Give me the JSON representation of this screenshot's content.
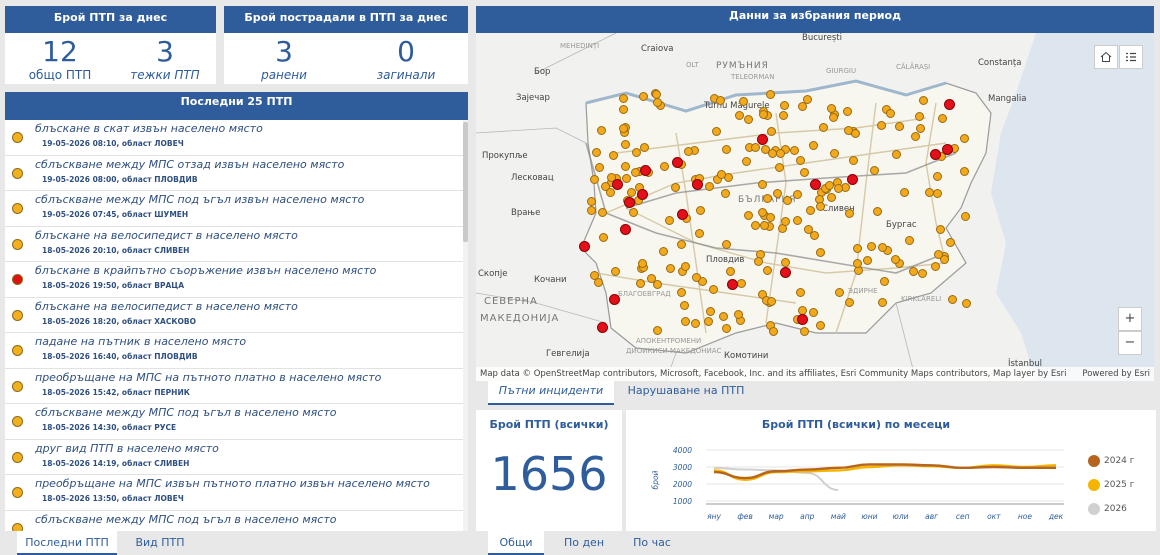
{
  "kpi_today": {
    "header": "Брой ПТП за днес",
    "total_value": "12",
    "total_label": "общо ПТП",
    "severe_value": "3",
    "severe_label": "тежки ПТП"
  },
  "kpi_victims": {
    "header": "Брой пострадали в ПТП за днес",
    "injured_value": "3",
    "injured_label": "ранени",
    "dead_value": "0",
    "dead_label": "загинали"
  },
  "list": {
    "header": "Последни 25 ПТП",
    "items": [
      {
        "title": "блъскане в скат  извън населено място",
        "sub": "19-05-2026 08:10, област ЛОВЕЧ",
        "color": "#f2b01e"
      },
      {
        "title": "сблъскване между МПС отзад  извън населено място",
        "sub": "19-05-2026 08:00, област ПЛОВДИВ",
        "color": "#f2b01e"
      },
      {
        "title": "сблъскване между МПС под ъгъл  извън населено място",
        "sub": "19-05-2026 07:45, област ШУМЕН",
        "color": "#f2b01e"
      },
      {
        "title": "блъскане на велосипедист  в населено място",
        "sub": "18-05-2026 20:10, област СЛИВЕН",
        "color": "#f2b01e"
      },
      {
        "title": "блъскане в крайпътно съоръжение  извън населено място",
        "sub": "18-05-2026 19:50, област ВРАЦА",
        "color": "#e01010"
      },
      {
        "title": "блъскане на велосипедист  в населено място",
        "sub": "18-05-2026 18:20, област ХАСКОВО",
        "color": "#f2b01e"
      },
      {
        "title": "падане на пътник  в населено място",
        "sub": "18-05-2026 16:40, област ПЛОВДИВ",
        "color": "#f2b01e"
      },
      {
        "title": "преобръщане на МПС на пътното платно  в населено място",
        "sub": "18-05-2026 15:42, област ПЕРНИК",
        "color": "#f2b01e"
      },
      {
        "title": "сблъскване между МПС под ъгъл  в населено място",
        "sub": "18-05-2026 14:30, област РУСЕ",
        "color": "#f2b01e"
      },
      {
        "title": "друг вид ПТП  в населено място",
        "sub": "18-05-2026 14:19, област СЛИВЕН",
        "color": "#f2b01e"
      },
      {
        "title": "преобръщане на МПС извън пътното платно  извън населено място",
        "sub": "18-05-2026 13:50, област ЛОВЕЧ",
        "color": "#f2b01e"
      },
      {
        "title": "сблъскване между МПС под ъгъл  в населено място",
        "sub": "",
        "color": "#f2b01e"
      }
    ]
  },
  "bottom_tabs": {
    "latest": "Последни ПТП",
    "type": "Вид ПТП"
  },
  "map_panel": {
    "header": "Данни за избрания период",
    "home_icon": "home-icon",
    "list_icon": "list-icon",
    "zoom_in": "+",
    "zoom_out": "−",
    "attribution": "Map data © OpenStreetMap contributors, Microsoft, Facebook, Inc. and its affiliates, Esri Community Maps contributors, Map layer by Esri",
    "powered": "Powered by Esri",
    "labels": {
      "craiova": "Craiova",
      "bucuresti": "București",
      "constanta": "Constanța",
      "mangalia": "Mangalia",
      "mehedinti": "MEHEDINȚI",
      "giurgiu": "GIURGIU",
      "olt": "OLT",
      "teleorman": "TELEORMAN",
      "calarasi": "CĂLĂRAȘI",
      "turnu": "Turnu Măgurele",
      "bor": "Бор",
      "zajecar": "Зајечар",
      "prokuplje": "Прокупље",
      "leskovac": "Лесковац",
      "vranje": "Врање",
      "skopje": "Скопје",
      "kochani": "Кочани",
      "severna": "СЕВЕРНА",
      "makedonija": "МАКЕДОНИЈА",
      "gevgelija": "Гевгелија",
      "rumania": "РУМЪНИЯ",
      "bulgaria": "БЪЛГАРИЯ",
      "burgas": "Бургас",
      "sliven": "Сливен",
      "plovdiv": "Пловдив",
      "blagoevgrad": "БЛАГОЕВГРАД",
      "aposkentromeni": "АПОКЕНТРОМЕНИ",
      "makedonias": "ДИОИКИСИ МАКЕДОНИАС",
      "komotini": "Комотини",
      "adrianopol": "ЭДИРНЕ",
      "kirklareli": "KIRKLARELI",
      "istanbul": "İstanbul",
      "lokas": "ЛОКА"
    }
  },
  "mid_tabs": {
    "incidents": "Пътни инциденти",
    "violations": "Нарушаване на ПТП"
  },
  "total_panel": {
    "header": "Брой ПТП (всички)",
    "value": "1656"
  },
  "chart_panel": {
    "header": "Брой ПТП (всички) по месеци"
  },
  "time_tabs": {
    "total": "Общи",
    "by_day": "По ден",
    "by_hour": "По час"
  },
  "chart_data": {
    "type": "line",
    "title": "Брой ПТП (всички) по месеци",
    "ylabel": "брой",
    "categories": [
      "яну",
      "фев",
      "мар",
      "апр",
      "май",
      "юни",
      "юли",
      "авг",
      "сеп",
      "окт",
      "ное",
      "дек"
    ],
    "ylim": [
      1000,
      4000
    ],
    "yticks": [
      "4000",
      "3000",
      "2000",
      "1000"
    ],
    "series": [
      {
        "name": "2024 г",
        "color": "#b5651d",
        "values": [
          2700,
          2350,
          2750,
          2850,
          2950,
          3150,
          3150,
          3100,
          2950,
          3000,
          2950,
          2950
        ]
      },
      {
        "name": "2025 г",
        "color": "#f5b400",
        "values": [
          2800,
          2250,
          2700,
          2750,
          2800,
          3000,
          3100,
          3050,
          2950,
          3100,
          3000,
          3100
        ]
      },
      {
        "name": "2026",
        "color": "#d0d0d0",
        "values": [
          2950,
          2850,
          2800,
          2650,
          1650,
          null,
          null,
          null,
          null,
          null,
          null,
          null
        ]
      }
    ]
  }
}
